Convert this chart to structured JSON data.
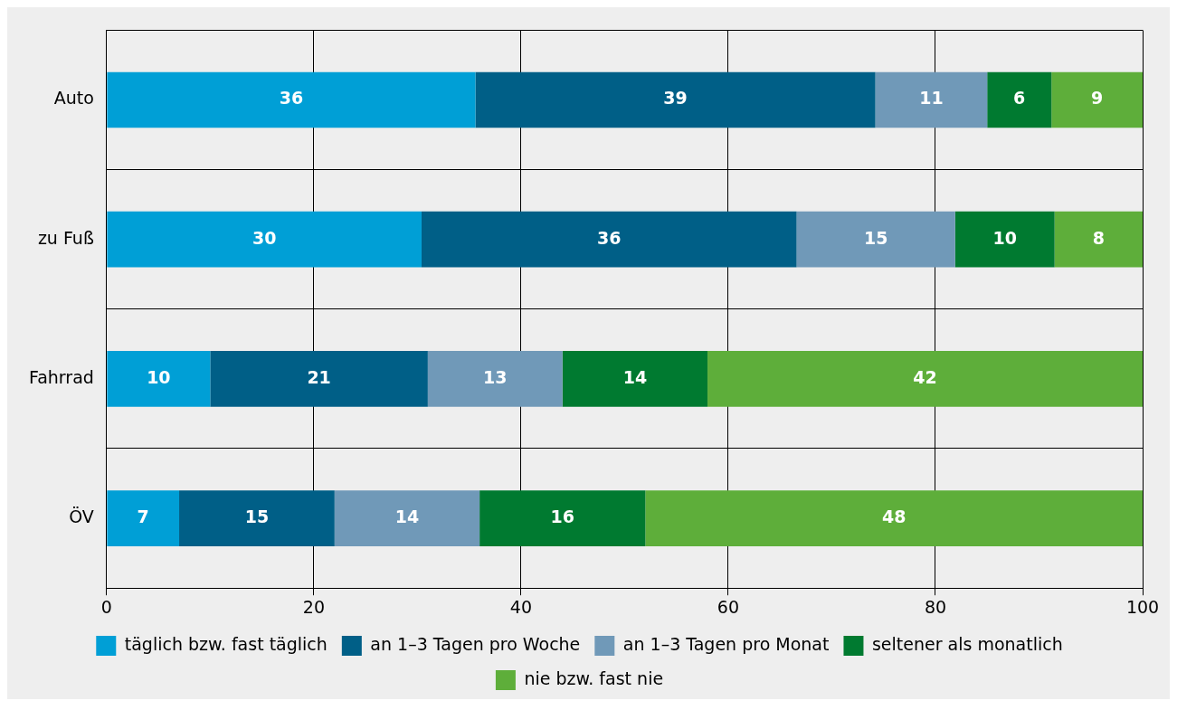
{
  "chart_data": {
    "type": "bar",
    "orientation": "horizontal",
    "stacked": true,
    "categories": [
      "Auto",
      "zu Fuß",
      "Fahrrad",
      "ÖV"
    ],
    "series": [
      {
        "name": "täglich bzw. fast täglich",
        "color": "#009fd6",
        "values": [
          35.6,
          30.4,
          10,
          7
        ],
        "value_labels": [
          "36",
          "30",
          "10",
          "7"
        ]
      },
      {
        "name": "an 1–3 Tagen pro Woche",
        "color": "#005f87",
        "values": [
          38.6,
          36.2,
          21,
          15
        ],
        "value_labels": [
          "39",
          "36",
          "21",
          "15"
        ]
      },
      {
        "name": "an 1–3 Tagen pro Monat",
        "color": "#7099b8",
        "values": [
          10.8,
          15.3,
          13,
          14
        ],
        "value_labels": [
          "11",
          "15",
          "13",
          "14"
        ]
      },
      {
        "name": "seltener als monatlich",
        "color": "#007a30",
        "values": [
          6.2,
          9.6,
          14,
          16
        ],
        "value_labels": [
          "6",
          "10",
          "14",
          "16"
        ]
      },
      {
        "name": "nie bzw. fast nie",
        "color": "#5eae3a",
        "values": [
          8.8,
          8.5,
          42,
          48
        ],
        "value_labels": [
          "9",
          "8",
          "42",
          "48"
        ]
      }
    ],
    "xlim": [
      0,
      100
    ],
    "xticks": [
      0,
      20,
      40,
      60,
      80,
      100
    ],
    "grid": true,
    "legend": "bottom"
  }
}
